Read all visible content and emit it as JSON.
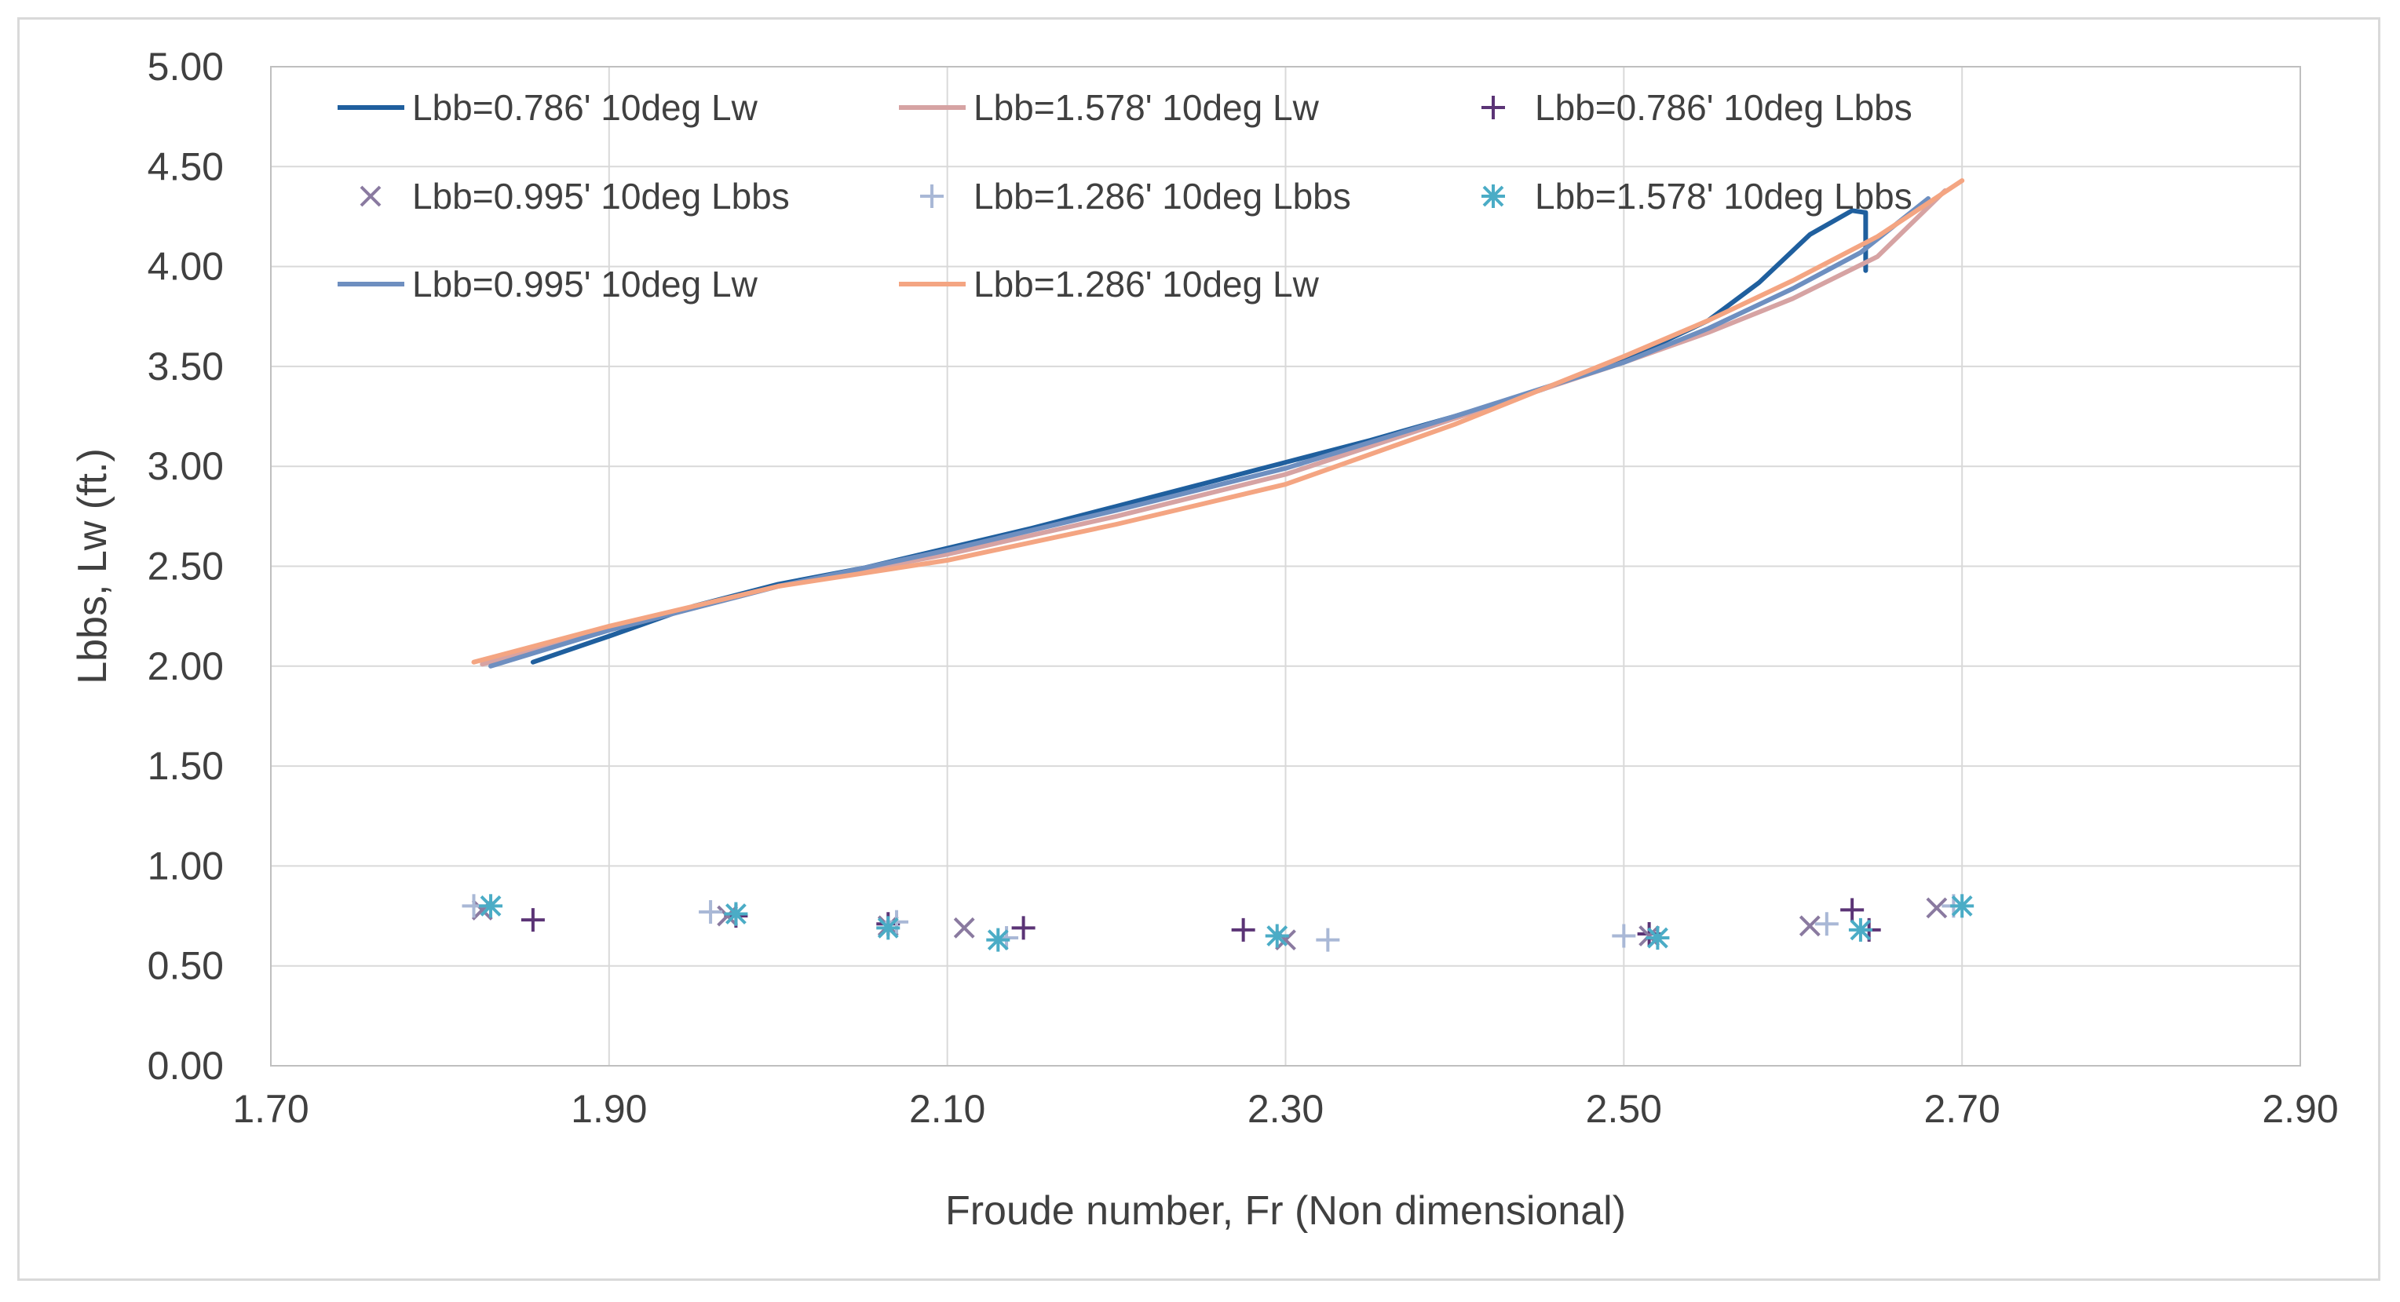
{
  "chart_data": {
    "type": "scatter",
    "title": "",
    "xlabel": "Froude number, Fr (Non dimensional)",
    "ylabel": "Lbbs,  Lw (ft.)",
    "xlim": [
      1.7,
      2.9
    ],
    "ylim": [
      0.0,
      5.0
    ],
    "x_ticks": [
      "1.70",
      "1.90",
      "2.10",
      "2.30",
      "2.50",
      "2.70",
      "2.90"
    ],
    "y_ticks": [
      "0.00",
      "0.50",
      "1.00",
      "1.50",
      "2.00",
      "2.50",
      "3.00",
      "3.50",
      "4.00",
      "4.50",
      "5.00"
    ],
    "grid": true,
    "legend_position": "top-left inside",
    "series": [
      {
        "name": "Lbb=0.786' 10deg Lw",
        "kind": "line",
        "color": "#1f5f9e",
        "points": [
          [
            1.855,
            2.02
          ],
          [
            1.9,
            2.15
          ],
          [
            1.95,
            2.3
          ],
          [
            2.0,
            2.41
          ],
          [
            2.05,
            2.49
          ],
          [
            2.1,
            2.59
          ],
          [
            2.15,
            2.69
          ],
          [
            2.2,
            2.8
          ],
          [
            2.25,
            2.91
          ],
          [
            2.3,
            3.02
          ],
          [
            2.35,
            3.13
          ],
          [
            2.4,
            3.25
          ],
          [
            2.45,
            3.38
          ],
          [
            2.5,
            3.53
          ],
          [
            2.55,
            3.73
          ],
          [
            2.58,
            3.92
          ],
          [
            2.61,
            4.16
          ],
          [
            2.635,
            4.28
          ],
          [
            2.643,
            4.27
          ],
          [
            2.643,
            3.98
          ]
        ]
      },
      {
        "name": "Lbb=1.578' 10deg Lw",
        "kind": "line",
        "color": "#d6a3a3",
        "points": [
          [
            1.825,
            2.01
          ],
          [
            1.9,
            2.18
          ],
          [
            2.0,
            2.4
          ],
          [
            2.1,
            2.56
          ],
          [
            2.2,
            2.75
          ],
          [
            2.3,
            2.96
          ],
          [
            2.4,
            3.24
          ],
          [
            2.5,
            3.52
          ],
          [
            2.55,
            3.67
          ],
          [
            2.6,
            3.84
          ],
          [
            2.65,
            4.05
          ],
          [
            2.69,
            4.38
          ]
        ]
      },
      {
        "name": "Lbb=0.786' 10deg Lbbs",
        "kind": "marker",
        "marker": "plus",
        "color": "#5b3476",
        "points": [
          [
            1.855,
            0.73
          ],
          [
            1.975,
            0.75
          ],
          [
            2.065,
            0.71
          ],
          [
            2.145,
            0.69
          ],
          [
            2.275,
            0.68
          ],
          [
            2.515,
            0.66
          ],
          [
            2.635,
            0.78
          ],
          [
            2.645,
            0.68
          ]
        ]
      },
      {
        "name": "Lbb=0.995' 10deg Lbbs",
        "kind": "marker",
        "marker": "x",
        "color": "#8a7aa0",
        "points": [
          [
            1.825,
            0.78
          ],
          [
            1.97,
            0.75
          ],
          [
            2.065,
            0.7
          ],
          [
            2.11,
            0.69
          ],
          [
            2.3,
            0.63
          ],
          [
            2.515,
            0.65
          ],
          [
            2.61,
            0.7
          ],
          [
            2.685,
            0.79
          ]
        ]
      },
      {
        "name": "Lbb=1.286' 10deg Lbbs",
        "kind": "marker",
        "marker": "plus",
        "color": "#a9b8d6",
        "points": [
          [
            1.82,
            0.8
          ],
          [
            1.96,
            0.77
          ],
          [
            2.07,
            0.72
          ],
          [
            2.135,
            0.64
          ],
          [
            2.325,
            0.63
          ],
          [
            2.5,
            0.65
          ],
          [
            2.62,
            0.71
          ],
          [
            2.695,
            0.8
          ]
        ]
      },
      {
        "name": "Lbb=1.578' 10deg Lbbs",
        "kind": "marker",
        "marker": "asterisk",
        "color": "#4bacc6",
        "points": [
          [
            1.83,
            0.8
          ],
          [
            1.975,
            0.76
          ],
          [
            2.065,
            0.69
          ],
          [
            2.13,
            0.63
          ],
          [
            2.295,
            0.65
          ],
          [
            2.52,
            0.64
          ],
          [
            2.64,
            0.68
          ],
          [
            2.7,
            0.8
          ]
        ]
      },
      {
        "name": "Lbb=0.995' 10deg Lw",
        "kind": "line",
        "color": "#6e8fc0",
        "points": [
          [
            1.83,
            2.0
          ],
          [
            1.9,
            2.18
          ],
          [
            2.0,
            2.4
          ],
          [
            2.1,
            2.58
          ],
          [
            2.2,
            2.78
          ],
          [
            2.3,
            2.99
          ],
          [
            2.4,
            3.25
          ],
          [
            2.5,
            3.52
          ],
          [
            2.55,
            3.69
          ],
          [
            2.6,
            3.89
          ],
          [
            2.64,
            4.07
          ],
          [
            2.68,
            4.34
          ]
        ]
      },
      {
        "name": "Lbb=1.286' 10deg Lw",
        "kind": "line",
        "color": "#f4a582",
        "points": [
          [
            1.82,
            2.02
          ],
          [
            1.9,
            2.2
          ],
          [
            2.0,
            2.4
          ],
          [
            2.1,
            2.53
          ],
          [
            2.2,
            2.71
          ],
          [
            2.3,
            2.91
          ],
          [
            2.4,
            3.21
          ],
          [
            2.5,
            3.55
          ],
          [
            2.55,
            3.73
          ],
          [
            2.6,
            3.93
          ],
          [
            2.65,
            4.15
          ],
          [
            2.7,
            4.43
          ]
        ]
      }
    ]
  }
}
